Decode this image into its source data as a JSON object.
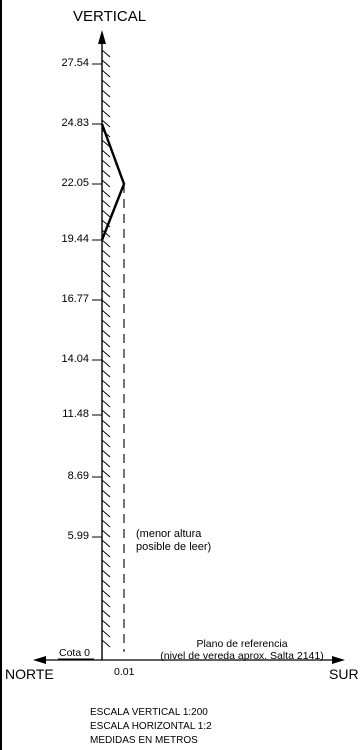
{
  "diagram": {
    "title": "VERTICAL",
    "ticks": [
      "27.54",
      "24.83",
      "22.05",
      "19.44",
      "16.77",
      "14.04",
      "11.48",
      "8.69",
      "5.99"
    ],
    "note": [
      "(menor altura",
      "posible de  leer)"
    ],
    "cota_label": "Cota 0",
    "reference": [
      "Plano de referencia",
      "(nivel de vereda aprox. Salta 2141)"
    ],
    "north_label": "NORTE",
    "south_label": "SUR",
    "offset_label": "0.01",
    "scales": [
      "ESCALA VERTICAL 1:200",
      "ESCALA HORIZONTAL 1:2",
      "MEDIDAS EN METROS"
    ],
    "colors": {
      "ink": "#000000",
      "background": "#ffffff"
    }
  }
}
